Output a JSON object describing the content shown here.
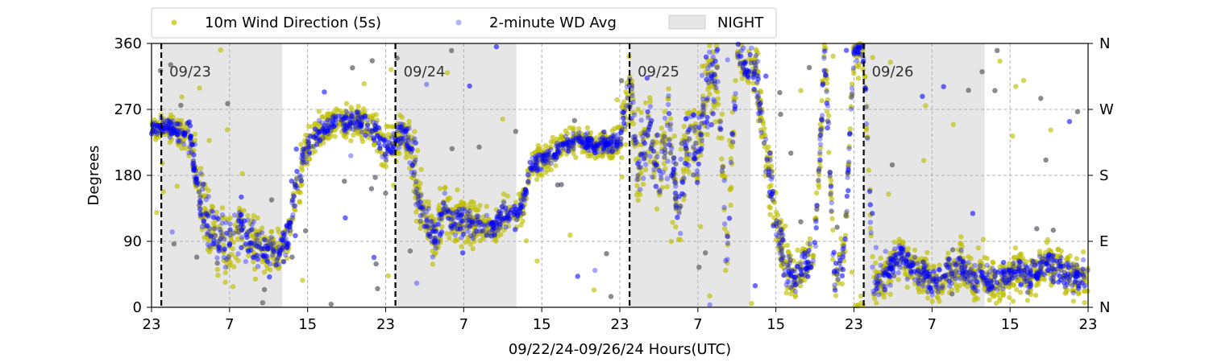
{
  "chart_data": {
    "type": "scatter",
    "xlabel": "09/22/24-09/26/24  Hours(UTC)",
    "ylabel": "Degrees",
    "x_unit": "hours",
    "xlim": [
      23,
      119
    ],
    "ylim": [
      0,
      360
    ],
    "x_ticks": [
      {
        "value": 23,
        "label": "23"
      },
      {
        "value": 31,
        "label": "7"
      },
      {
        "value": 39,
        "label": "15"
      },
      {
        "value": 47,
        "label": "23"
      },
      {
        "value": 55,
        "label": "7"
      },
      {
        "value": 63,
        "label": "15"
      },
      {
        "value": 71,
        "label": "23"
      },
      {
        "value": 79,
        "label": "7"
      },
      {
        "value": 87,
        "label": "15"
      },
      {
        "value": 95,
        "label": "23"
      },
      {
        "value": 103,
        "label": "7"
      },
      {
        "value": 111,
        "label": "15"
      },
      {
        "value": 119,
        "label": "23"
      }
    ],
    "y_ticks": [
      {
        "value": 0,
        "label": "0"
      },
      {
        "value": 90,
        "label": "90"
      },
      {
        "value": 180,
        "label": "180"
      },
      {
        "value": 270,
        "label": "270"
      },
      {
        "value": 360,
        "label": "360"
      }
    ],
    "y_ticks_right": [
      {
        "value": 0,
        "label": "N"
      },
      {
        "value": 90,
        "label": "E"
      },
      {
        "value": 180,
        "label": "S"
      },
      {
        "value": 270,
        "label": "W"
      },
      {
        "value": 360,
        "label": "N"
      }
    ],
    "grid": true,
    "legend_position": "top-left",
    "day_markers": [
      {
        "x": 24,
        "label": "09/23"
      },
      {
        "x": 48,
        "label": "09/24"
      },
      {
        "x": 72,
        "label": "09/25"
      },
      {
        "x": 96,
        "label": "09/26"
      }
    ],
    "night_spans": [
      [
        24,
        36.4
      ],
      [
        48,
        60.4
      ],
      [
        72,
        84.4
      ],
      [
        96,
        108.4
      ]
    ],
    "series": [
      {
        "name": "10m Wind Direction (5s)",
        "color": "#bfbf00",
        "x": [
          23,
          24,
          25,
          26,
          27,
          28,
          29,
          30,
          31,
          32,
          33,
          34,
          35,
          36,
          37,
          38,
          39,
          40,
          41,
          42,
          43,
          44,
          45,
          46,
          47,
          48,
          49,
          50,
          51,
          52,
          53,
          54,
          55,
          56,
          57,
          58,
          59,
          60,
          61,
          62,
          63,
          64,
          65,
          66,
          67,
          68,
          69,
          70,
          71,
          72,
          73,
          74,
          75,
          76,
          77,
          78,
          79,
          80,
          81,
          82,
          83,
          84,
          85,
          86,
          87,
          88,
          89,
          90,
          91,
          92,
          93,
          94,
          95,
          96,
          97,
          98,
          99,
          100,
          101,
          102,
          103,
          104,
          105,
          106,
          107,
          108,
          109,
          110,
          111,
          112,
          113,
          114,
          115,
          116,
          117,
          118,
          119
        ],
        "y": [
          240,
          250,
          245,
          235,
          230,
          140,
          110,
          90,
          80,
          110,
          95,
          85,
          80,
          70,
          100,
          180,
          220,
          235,
          245,
          260,
          250,
          255,
          250,
          235,
          215,
          225,
          240,
          190,
          120,
          90,
          140,
          115,
          120,
          115,
          105,
          110,
          125,
          130,
          140,
          195,
          200,
          210,
          220,
          225,
          230,
          225,
          220,
          225,
          220,
          300,
          190,
          250,
          170,
          240,
          110,
          240,
          220,
          300,
          320,
          80,
          340,
          330,
          320,
          200,
          120,
          60,
          40,
          60,
          80,
          350,
          40,
          70,
          345,
          350,
          30,
          40,
          60,
          70,
          50,
          45,
          35,
          40,
          50,
          60,
          40,
          45,
          35,
          40,
          45,
          50,
          40,
          55,
          60,
          50,
          45,
          40,
          45
        ],
        "spread": [
          15,
          15,
          15,
          20,
          30,
          40,
          50,
          50,
          50,
          45,
          45,
          40,
          35,
          30,
          40,
          40,
          30,
          25,
          25,
          25,
          25,
          25,
          25,
          25,
          25,
          25,
          25,
          50,
          40,
          35,
          35,
          30,
          30,
          25,
          25,
          25,
          25,
          25,
          25,
          20,
          20,
          20,
          20,
          20,
          20,
          20,
          20,
          20,
          20,
          60,
          60,
          60,
          60,
          60,
          50,
          60,
          60,
          60,
          50,
          50,
          30,
          30,
          40,
          50,
          40,
          35,
          35,
          35,
          35,
          40,
          35,
          35,
          25,
          25,
          30,
          30,
          30,
          30,
          30,
          30,
          30,
          30,
          30,
          30,
          30,
          30,
          30,
          30,
          30,
          30,
          30,
          30,
          30,
          30,
          30,
          30,
          30
        ]
      },
      {
        "name": "2-minute WD Avg",
        "color": "#0000ff",
        "x": [
          23,
          24,
          25,
          26,
          27,
          28,
          29,
          30,
          31,
          32,
          33,
          34,
          35,
          36,
          37,
          38,
          39,
          40,
          41,
          42,
          43,
          44,
          45,
          46,
          47,
          48,
          49,
          50,
          51,
          52,
          53,
          54,
          55,
          56,
          57,
          58,
          59,
          60,
          61,
          62,
          63,
          64,
          65,
          66,
          67,
          68,
          69,
          70,
          71,
          72,
          73,
          74,
          75,
          76,
          77,
          78,
          79,
          80,
          81,
          82,
          83,
          84,
          85,
          86,
          87,
          88,
          89,
          90,
          91,
          92,
          93,
          94,
          95,
          96,
          97,
          98,
          99,
          100,
          101,
          102,
          103,
          104,
          105,
          106,
          107,
          108,
          109,
          110,
          111,
          112,
          113,
          114,
          115,
          116,
          117,
          118,
          119
        ],
        "y": [
          240,
          250,
          245,
          235,
          230,
          140,
          110,
          90,
          80,
          110,
          95,
          85,
          80,
          70,
          100,
          180,
          220,
          235,
          245,
          260,
          250,
          255,
          250,
          235,
          215,
          225,
          240,
          190,
          120,
          90,
          140,
          115,
          120,
          115,
          105,
          110,
          125,
          130,
          140,
          195,
          200,
          210,
          220,
          225,
          230,
          225,
          220,
          225,
          220,
          300,
          190,
          250,
          170,
          240,
          110,
          240,
          220,
          300,
          320,
          80,
          340,
          330,
          320,
          200,
          120,
          60,
          40,
          60,
          80,
          350,
          40,
          70,
          345,
          350,
          30,
          40,
          60,
          70,
          50,
          45,
          35,
          40,
          50,
          60,
          40,
          45,
          35,
          40,
          45,
          50,
          40,
          55,
          60,
          50,
          45,
          40,
          45
        ],
        "spread": [
          10,
          10,
          10,
          15,
          25,
          35,
          40,
          40,
          40,
          35,
          35,
          30,
          25,
          20,
          30,
          30,
          20,
          15,
          15,
          15,
          15,
          15,
          15,
          15,
          15,
          15,
          15,
          40,
          30,
          25,
          25,
          20,
          20,
          15,
          15,
          15,
          15,
          15,
          15,
          12,
          12,
          12,
          12,
          12,
          12,
          12,
          12,
          12,
          12,
          50,
          50,
          50,
          50,
          50,
          40,
          50,
          50,
          50,
          40,
          40,
          20,
          20,
          30,
          40,
          30,
          25,
          25,
          25,
          25,
          30,
          25,
          25,
          15,
          15,
          20,
          20,
          20,
          20,
          20,
          20,
          20,
          20,
          20,
          20,
          20,
          20,
          20,
          20,
          20,
          20,
          20,
          20,
          20,
          20,
          20,
          20,
          20
        ]
      }
    ],
    "legend": {
      "night_label": "NIGHT",
      "night_color": "#e6e6e6"
    }
  }
}
